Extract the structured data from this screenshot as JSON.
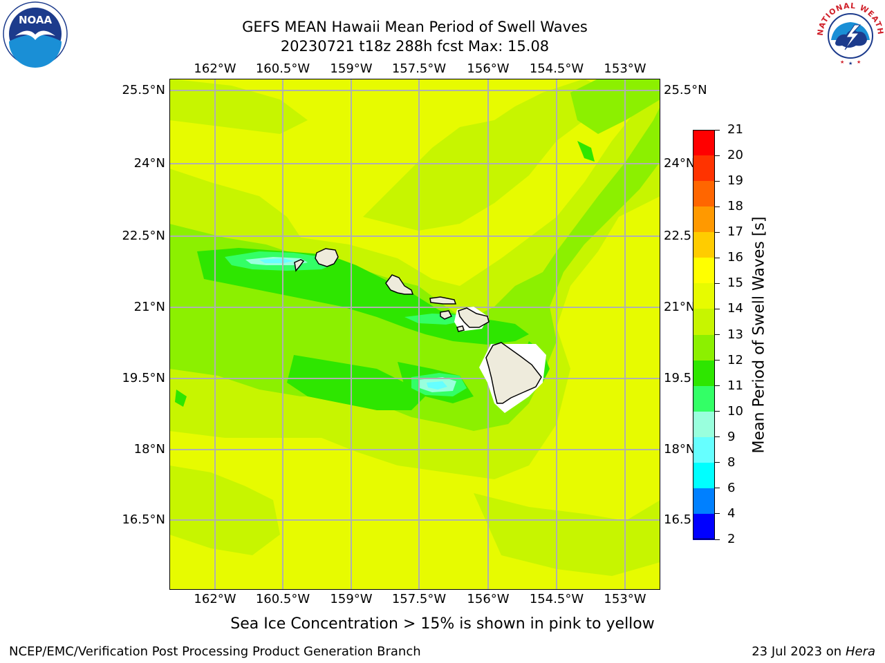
{
  "title": {
    "line1": "GEFS MEAN Hawaii Mean Period of Swell Waves",
    "line2": "20230721 t18z 288h fcst   Max: 15.08"
  },
  "map": {
    "lon_labels": [
      "162°W",
      "160.5°W",
      "159°W",
      "157.5°W",
      "156°W",
      "154.5°W",
      "153°W"
    ],
    "lat_labels_left": [
      "25.5°N",
      "24°N",
      "22.5°N",
      "21°N",
      "19.5°N",
      "18°N",
      "16.5°N"
    ],
    "lat_labels_right": [
      "25.5°N",
      "24°N",
      "22.5",
      "21°N",
      "19.5",
      "18°N",
      "16.5"
    ],
    "base_color": "#e7fb00",
    "grid_color": "#b0b0b0",
    "land_color": "#eeebdc"
  },
  "colorbar": {
    "label": "Mean Period of Swell Waves [s]",
    "ticks": [
      "21",
      "20",
      "19",
      "18",
      "17",
      "16",
      "15",
      "14",
      "13",
      "12",
      "11",
      "10",
      "9",
      "8",
      "6",
      "4",
      "2"
    ],
    "colors": [
      "#ff0000",
      "#ff3300",
      "#ff6600",
      "#ff9900",
      "#ffcc00",
      "#ffff00",
      "#e7fb00",
      "#c7f500",
      "#8cf000",
      "#2ee600",
      "#33ff66",
      "#99ffdd",
      "#66ffff",
      "#00ffff",
      "#0080ff",
      "#0000ff"
    ]
  },
  "note": "Sea Ice Concentration > 15% is shown in pink to yellow",
  "footer": {
    "left": "NCEP/EMC/Verification Post Processing Product Generation Branch",
    "right_date": "23 Jul 2023 on ",
    "right_host": "Hera"
  },
  "logos": {
    "noaa_text": "NOAA",
    "nws_text": "NATIONAL WEATHER SERVICE"
  }
}
